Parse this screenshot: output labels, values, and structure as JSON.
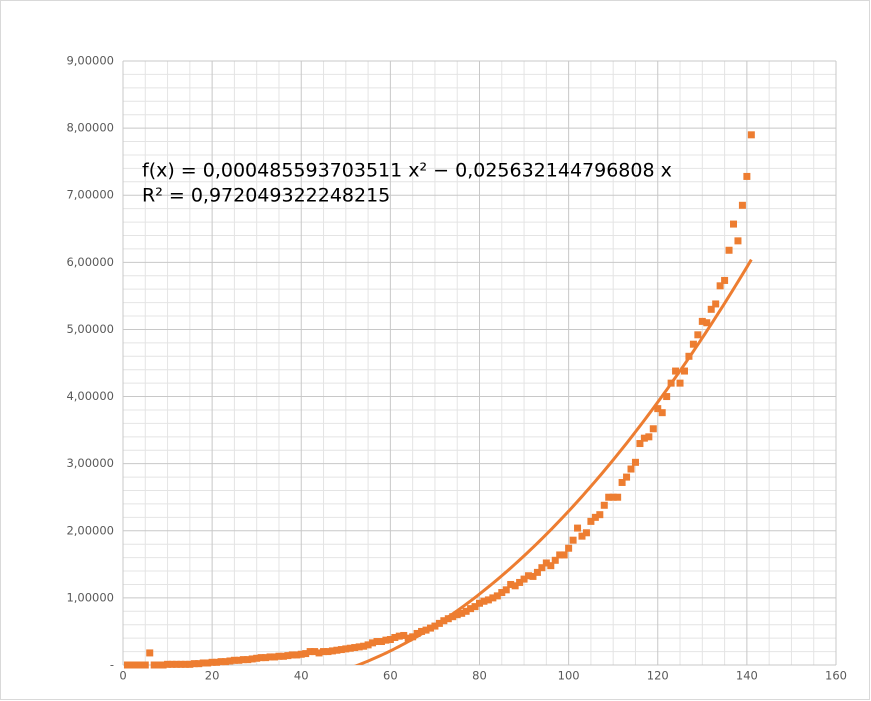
{
  "chart_data": {
    "type": "scatter",
    "x": [
      1,
      2,
      3,
      4,
      5,
      6,
      7,
      8,
      9,
      10,
      11,
      12,
      13,
      14,
      15,
      16,
      17,
      18,
      19,
      20,
      21,
      22,
      23,
      24,
      25,
      26,
      27,
      28,
      29,
      30,
      31,
      32,
      33,
      34,
      35,
      36,
      37,
      38,
      39,
      40,
      41,
      42,
      43,
      44,
      45,
      46,
      47,
      48,
      49,
      50,
      51,
      52,
      53,
      54,
      55,
      56,
      57,
      58,
      59,
      60,
      61,
      62,
      63,
      64,
      65,
      66,
      67,
      68,
      69,
      70,
      71,
      72,
      73,
      74,
      75,
      76,
      77,
      78,
      79,
      80,
      81,
      82,
      83,
      84,
      85,
      86,
      87,
      88,
      89,
      90,
      91,
      92,
      93,
      94,
      95,
      96,
      97,
      98,
      99,
      100,
      101,
      102,
      103,
      104,
      105,
      106,
      107,
      108,
      109,
      110,
      111,
      112,
      113,
      114,
      115,
      116,
      117,
      118,
      119,
      120,
      121,
      122,
      123,
      124,
      125,
      126,
      127,
      128,
      129,
      130,
      131,
      132,
      133,
      134,
      135,
      136,
      137,
      138,
      139,
      140,
      141
    ],
    "series": [
      {
        "color": "#ed7d31",
        "values": [
          0,
          0,
          0,
          0,
          0,
          0.18,
          0,
          0,
          0,
          0.01,
          0.01,
          0.01,
          0.01,
          0.01,
          0.01,
          0.02,
          0.02,
          0.03,
          0.03,
          0.04,
          0.04,
          0.05,
          0.05,
          0.06,
          0.07,
          0.07,
          0.08,
          0.08,
          0.09,
          0.1,
          0.11,
          0.11,
          0.12,
          0.12,
          0.13,
          0.13,
          0.14,
          0.15,
          0.15,
          0.16,
          0.17,
          0.2,
          0.2,
          0.18,
          0.2,
          0.2,
          0.21,
          0.22,
          0.23,
          0.24,
          0.25,
          0.26,
          0.27,
          0.28,
          0.3,
          0.33,
          0.35,
          0.35,
          0.37,
          0.38,
          0.41,
          0.43,
          0.44,
          0.4,
          0.42,
          0.47,
          0.5,
          0.52,
          0.55,
          0.58,
          0.62,
          0.66,
          0.69,
          0.72,
          0.75,
          0.77,
          0.8,
          0.84,
          0.87,
          0.92,
          0.95,
          0.97,
          1.0,
          1.03,
          1.08,
          1.12,
          1.2,
          1.18,
          1.23,
          1.28,
          1.33,
          1.32,
          1.38,
          1.45,
          1.52,
          1.48,
          1.56,
          1.64,
          1.64,
          1.74,
          1.86,
          2.04,
          1.92,
          1.97,
          2.14,
          2.2,
          2.24,
          2.38,
          2.5,
          2.5,
          2.5,
          2.72,
          2.8,
          2.92,
          3.02,
          3.3,
          3.38,
          3.4,
          3.52,
          3.82,
          3.76,
          4.0,
          4.2,
          4.38,
          4.2,
          4.38,
          4.6,
          4.78,
          4.92,
          5.12,
          5.1,
          5.3,
          5.38,
          5.65,
          5.73,
          6.18,
          6.57,
          6.32,
          6.85,
          7.28,
          7.9
        ]
      }
    ],
    "trendline": {
      "equation": "f(x) = 0,000485593703511 x² − 0,025632144796808 x",
      "r_squared": "R² = 0,972049322248215",
      "coefficients": [
        0.000485593703511,
        -0.025632144796808
      ],
      "color": "#ed7d31"
    },
    "xlim": [
      0,
      160
    ],
    "xticks": [
      0,
      20,
      40,
      60,
      80,
      100,
      120,
      140,
      160
    ],
    "ylim": [
      0,
      9
    ],
    "yticks": [
      {
        "value": 0,
        "label": "-"
      },
      {
        "value": 1,
        "label": "1,00000"
      },
      {
        "value": 2,
        "label": "2,00000"
      },
      {
        "value": 3,
        "label": "3,00000"
      },
      {
        "value": 4,
        "label": "4,00000"
      },
      {
        "value": 5,
        "label": "5,00000"
      },
      {
        "value": 6,
        "label": "6,00000"
      },
      {
        "value": 7,
        "label": "7,00000"
      },
      {
        "value": 8,
        "label": "8,00000"
      },
      {
        "value": 9,
        "label": "9,00000"
      }
    ],
    "grid": true,
    "minor_grid": true
  }
}
